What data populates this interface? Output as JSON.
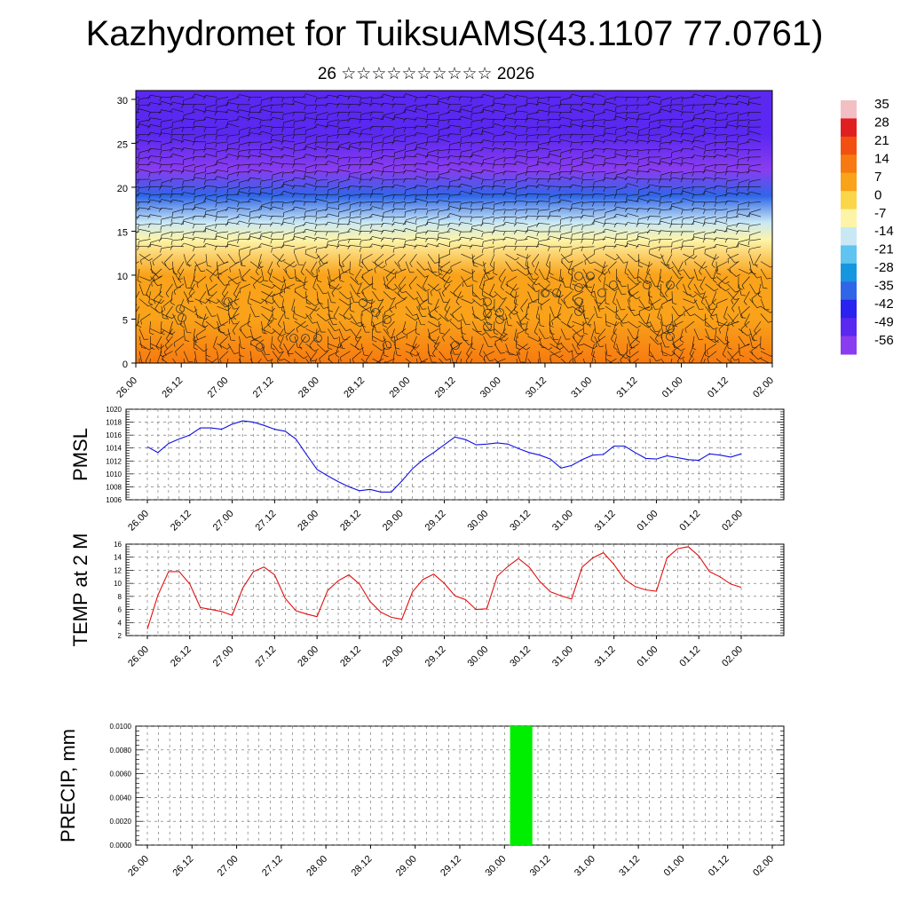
{
  "header": {
    "title": "Kazhydromet for TuiksuAMS(43.1107 77.0761)",
    "subtitle": "26 ☆☆☆☆☆☆☆☆☆☆ 2026"
  },
  "time_labels": [
    "26.00",
    "26.12",
    "27.00",
    "27.12",
    "28.00",
    "28.12",
    "29.00",
    "29.12",
    "30.00",
    "30.12",
    "31.00",
    "31.12",
    "01.00",
    "01.12",
    "02.00"
  ],
  "chart_data": [
    {
      "type": "heatmap",
      "id": "wind-temp-profile",
      "description_role": "temperature shading with wind barbs by level",
      "ylim": [
        0,
        31
      ],
      "yticks": [
        0,
        5,
        10,
        15,
        20,
        25,
        30
      ],
      "colorbar": {
        "labels": [
          "35",
          "28",
          "21",
          "14",
          "7",
          "0",
          "-7",
          "-14",
          "-21",
          "-28",
          "-35",
          "-42",
          "-49",
          "-56"
        ],
        "colors": [
          "#f2c0c4",
          "#e02020",
          "#f25010",
          "#f77a10",
          "#f9a21a",
          "#fbd54a",
          "#fdf4a8",
          "#c9e8f5",
          "#5fc4ef",
          "#1796e0",
          "#2f66e8",
          "#2a22ee",
          "#5a28f0",
          "#8a3cf0"
        ]
      },
      "profile_by_level": [
        {
          "level": 0,
          "temp": 14
        },
        {
          "level": 5,
          "temp": 10
        },
        {
          "level": 10,
          "temp": 4
        },
        {
          "level": 14,
          "temp": -4
        },
        {
          "level": 16,
          "temp": -16
        },
        {
          "level": 19,
          "temp": -32
        },
        {
          "level": 22,
          "temp": -58
        },
        {
          "level": 26,
          "temp": -50
        },
        {
          "level": 31,
          "temp": -52
        }
      ]
    },
    {
      "type": "line",
      "id": "pmsl",
      "ylabel": "PMSL",
      "ylim": [
        1006,
        1020
      ],
      "yticks": [
        "1006",
        "1008",
        "1010",
        "1012",
        "1014",
        "1016",
        "1018",
        "1020"
      ],
      "color": "#1010e0",
      "values": [
        1014.2,
        1013.3,
        1014.7,
        1015.4,
        1016.0,
        1017.1,
        1017.1,
        1016.9,
        1017.7,
        1018.2,
        1018.0,
        1017.5,
        1016.9,
        1016.6,
        1015.4,
        1013.0,
        1010.7,
        1009.7,
        1008.8,
        1008.0,
        1007.4,
        1007.6,
        1007.2,
        1007.2,
        1008.9,
        1010.8,
        1012.2,
        1013.3,
        1014.5,
        1015.7,
        1015.3,
        1014.5,
        1014.6,
        1014.8,
        1014.6,
        1013.9,
        1013.3,
        1012.9,
        1012.3,
        1010.9,
        1011.3,
        1012.2,
        1012.9,
        1013.0,
        1014.3,
        1014.3,
        1013.3,
        1012.4,
        1012.3,
        1012.8,
        1012.5,
        1012.2,
        1012.1,
        1013.1,
        1012.9,
        1012.6,
        1013.1
      ]
    },
    {
      "type": "line",
      "id": "temp2m",
      "ylabel": "TEMP at 2 M",
      "ylim": [
        2,
        16
      ],
      "yticks": [
        "2",
        "4",
        "6",
        "8",
        "10",
        "12",
        "14",
        "16"
      ],
      "color": "#e01010",
      "values": [
        3.0,
        8.2,
        11.8,
        11.8,
        9.9,
        6.3,
        6.0,
        5.7,
        5.1,
        9.3,
        11.8,
        12.5,
        11.3,
        7.7,
        5.8,
        5.3,
        4.9,
        8.9,
        10.4,
        11.3,
        9.9,
        7.2,
        5.6,
        4.8,
        4.5,
        8.7,
        10.6,
        11.4,
        10.0,
        8.1,
        7.5,
        6.0,
        6.1,
        11.1,
        12.6,
        13.8,
        12.5,
        10.3,
        8.7,
        8.1,
        7.6,
        12.5,
        13.9,
        14.7,
        12.9,
        10.6,
        9.5,
        9.0,
        8.8,
        13.9,
        15.3,
        15.6,
        14.2,
        11.8,
        11.0,
        9.9,
        9.4
      ]
    },
    {
      "type": "bar",
      "id": "precip",
      "ylabel": "PRECIP, mm",
      "ylim": [
        0,
        0.01
      ],
      "yticks": [
        "0.0000",
        "0.0020",
        "0.0040",
        "0.0060",
        "0.0080",
        "0.0100"
      ],
      "color": "#00ee00",
      "bars": [
        {
          "start": 32.5,
          "end": 34.5,
          "value": 0.01
        }
      ]
    }
  ]
}
